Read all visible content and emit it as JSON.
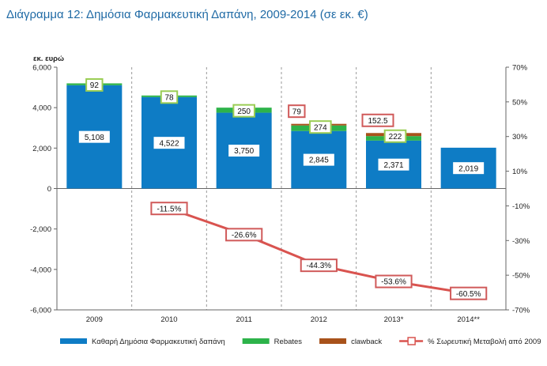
{
  "chart_data": {
    "type": "bar",
    "title": "Διάγραμμα 12: Δημόσια Φαρμακευτική Δαπάνη, 2009-2014 (σε εκ. €)",
    "ylabel": "εκ. ευρώ",
    "ylim": [
      -6000,
      6000
    ],
    "y_ticks": [
      "6,000",
      "4,000",
      "2,000",
      "0",
      "-2,000",
      "-4,000",
      "-6,000"
    ],
    "y2lim": [
      -70,
      70
    ],
    "y2_ticks": [
      "70%",
      "50%",
      "30%",
      "10%",
      "-10%",
      "-30%",
      "-50%",
      "-70%"
    ],
    "grid": "vertical-dashed",
    "legend_position": "bottom",
    "categories": [
      "2009",
      "2010",
      "2011",
      "2012",
      "2013*",
      "2014**"
    ],
    "series": [
      {
        "name": "Καθαρή Δημόσια Φαρμακευτική δαπάνη",
        "kind": "bar",
        "color": "#0e7cc5",
        "values": [
          5108,
          4522,
          3750,
          2845,
          2371,
          2019
        ],
        "labels": [
          "5,108",
          "4,522",
          "3,750",
          "2,845",
          "2,371",
          "2,019"
        ]
      },
      {
        "name": "Rebates",
        "kind": "bar",
        "color": "#2db34a",
        "values": [
          92,
          78,
          250,
          274,
          222,
          null
        ],
        "labels": [
          "92",
          "78",
          "250",
          "274",
          "222",
          ""
        ]
      },
      {
        "name": "clawback",
        "kind": "bar",
        "color": "#a8521b",
        "values": [
          null,
          null,
          null,
          79,
          152.5,
          null
        ],
        "labels": [
          "",
          "",
          "",
          "79",
          "152.5",
          ""
        ]
      },
      {
        "name": "% Σωρευτική Μεταβολή από 2009",
        "kind": "line",
        "color": "#d9534f",
        "values": [
          null,
          -11.5,
          -26.6,
          -44.3,
          -53.6,
          -60.5
        ],
        "labels": [
          "",
          "-11.5%",
          "-26.6%",
          "-44.3%",
          "-53.6%",
          "-60.5%"
        ]
      }
    ]
  }
}
